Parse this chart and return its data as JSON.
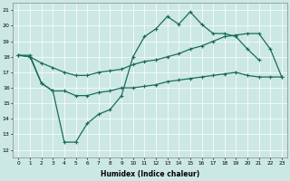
{
  "xlabel": "Humidex (Indice chaleur)",
  "bg_color": "#cce8e4",
  "grid_color": "#b0d8d0",
  "line_color": "#1a6b5a",
  "xlim": [
    -0.5,
    23.5
  ],
  "ylim": [
    11.5,
    21.5
  ],
  "xticks": [
    0,
    1,
    2,
    3,
    4,
    5,
    6,
    7,
    8,
    9,
    10,
    11,
    12,
    13,
    14,
    15,
    16,
    17,
    18,
    19,
    20,
    21,
    22,
    23
  ],
  "yticks": [
    12,
    13,
    14,
    15,
    16,
    17,
    18,
    19,
    20,
    21
  ],
  "line1_x": [
    0,
    1,
    2,
    3,
    4,
    5,
    6,
    7,
    8,
    9,
    10,
    11,
    12,
    13,
    14,
    15,
    16,
    17,
    18,
    19,
    20,
    21
  ],
  "line1_y": [
    18.1,
    18.1,
    16.3,
    15.8,
    12.5,
    12.5,
    13.7,
    14.3,
    14.6,
    15.5,
    18.0,
    19.3,
    19.8,
    20.6,
    20.1,
    20.9,
    20.1,
    19.5,
    19.5,
    19.3,
    18.5,
    17.8
  ],
  "line2_x": [
    0,
    1,
    2,
    3,
    4,
    5,
    6,
    7,
    8,
    9,
    10,
    11,
    12,
    13,
    14,
    15,
    16,
    17,
    18,
    19,
    20,
    21,
    22,
    23
  ],
  "line2_y": [
    18.1,
    18.0,
    17.6,
    17.3,
    17.0,
    16.8,
    16.8,
    17.0,
    17.1,
    17.2,
    17.5,
    17.7,
    17.8,
    18.0,
    18.2,
    18.5,
    18.7,
    19.0,
    19.3,
    19.4,
    19.5,
    19.5,
    18.5,
    16.7
  ],
  "line3_x": [
    0,
    1,
    2,
    3,
    4,
    5,
    6,
    7,
    8,
    9,
    10,
    11,
    12,
    13,
    14,
    15,
    16,
    17,
    18,
    19,
    20,
    21,
    22,
    23
  ],
  "line3_y": [
    18.1,
    18.0,
    16.3,
    15.8,
    15.8,
    15.5,
    15.5,
    15.7,
    15.8,
    16.0,
    16.0,
    16.1,
    16.2,
    16.4,
    16.5,
    16.6,
    16.7,
    16.8,
    16.9,
    17.0,
    16.8,
    16.7,
    16.7,
    16.7
  ]
}
